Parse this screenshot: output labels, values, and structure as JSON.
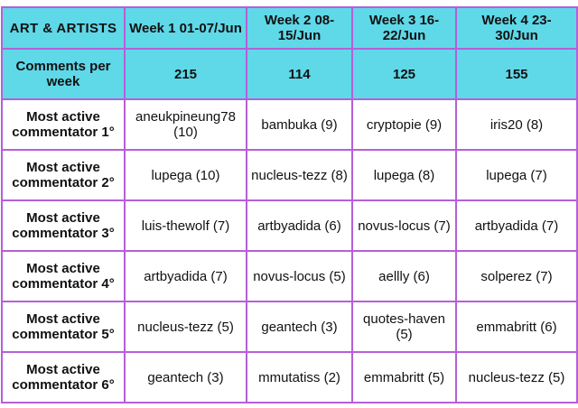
{
  "table": {
    "corner_label": "ART & ARTISTS",
    "weeks": [
      "Week 1 01-07/Jun",
      "Week 2 08-15/Jun",
      "Week 3 16-22/Jun",
      "Week 4 23-30/Jun"
    ],
    "comments_label": "Comments per week",
    "comments": [
      "215",
      "114",
      "125",
      "155"
    ],
    "rows": [
      {
        "label": "Most active commentator 1°",
        "cells": [
          "aneukpineung78 (10)",
          "bambuka (9)",
          "cryptopie (9)",
          "iris20 (8)"
        ]
      },
      {
        "label": "Most active commentator 2°",
        "cells": [
          "lupega (10)",
          "nucleus-tezz (8)",
          "lupega (8)",
          "lupega (7)"
        ]
      },
      {
        "label": "Most active commentator 3°",
        "cells": [
          "luis-thewolf (7)",
          "artbyadida (6)",
          "novus-locus (7)",
          "artbyadida (7)"
        ]
      },
      {
        "label": "Most active commentator 4°",
        "cells": [
          "artbyadida (7)",
          "novus-locus (5)",
          "aellly (6)",
          "solperez (7)"
        ]
      },
      {
        "label": "Most active commentator 5°",
        "cells": [
          "nucleus-tezz (5)",
          "geantech (3)",
          "quotes-haven (5)",
          "emmabritt (6)"
        ]
      },
      {
        "label": "Most active commentator 6°",
        "cells": [
          "geantech (3)",
          "mmutatiss (2)",
          "emmabritt (5)",
          "nucleus-tezz (5)"
        ]
      }
    ]
  },
  "colors": {
    "header_bg": "#5fd8e8",
    "border": "#b65fd8",
    "text": "#111111"
  }
}
